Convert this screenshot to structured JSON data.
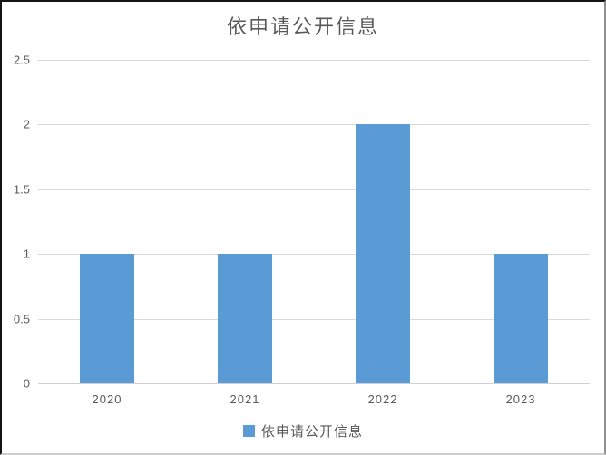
{
  "chart_data": {
    "type": "bar",
    "title": "依申请公开信息",
    "categories": [
      "2020",
      "2021",
      "2022",
      "2023"
    ],
    "series": [
      {
        "name": "依申请公开信息",
        "values": [
          1,
          1,
          2,
          1
        ]
      }
    ],
    "xlabel": "",
    "ylabel": "",
    "ylim": [
      0,
      2.5
    ],
    "yticks": [
      "0",
      "0.5",
      "1",
      "1.5",
      "2",
      "2.5"
    ],
    "grid": "horizontal",
    "legend_position": "bottom",
    "colors": {
      "bar": "#5B9BD5",
      "gridline": "#d9d9d9",
      "text": "#595959",
      "background": "#ffffff"
    },
    "legend": [
      "依申请公开信息"
    ]
  }
}
